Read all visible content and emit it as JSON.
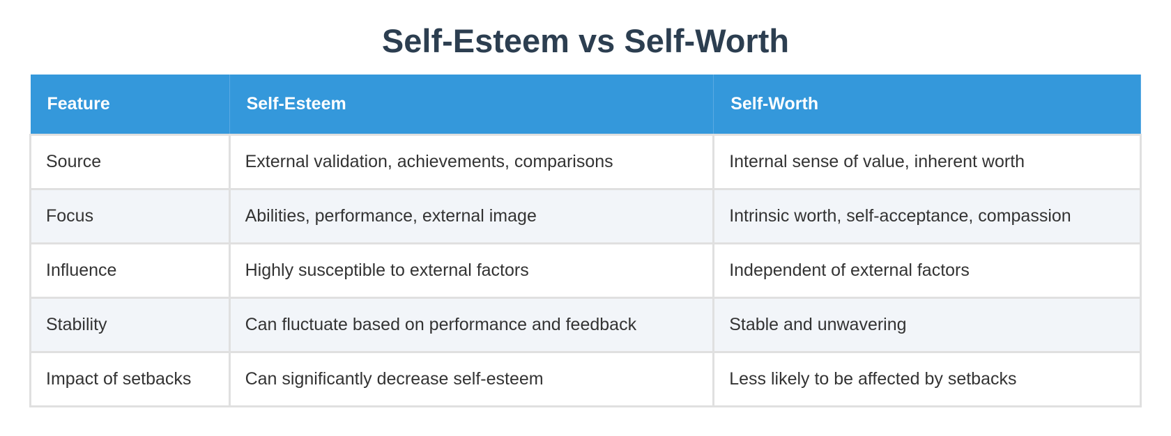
{
  "title": "Self-Esteem vs Self-Worth",
  "table": {
    "headers": [
      "Feature",
      "Self-Esteem",
      "Self-Worth"
    ],
    "rows": [
      [
        "Source",
        "External validation, achievements, comparisons",
        "Internal sense of value, inherent worth"
      ],
      [
        "Focus",
        "Abilities, performance, external image",
        "Intrinsic worth, self-acceptance, compassion"
      ],
      [
        "Influence",
        "Highly susceptible to external factors",
        "Independent of external factors"
      ],
      [
        "Stability",
        "Can fluctuate based on performance and feedback",
        "Stable and unwavering"
      ],
      [
        "Impact of setbacks",
        "Can significantly decrease self-esteem",
        "Less likely to be affected by setbacks"
      ]
    ]
  }
}
